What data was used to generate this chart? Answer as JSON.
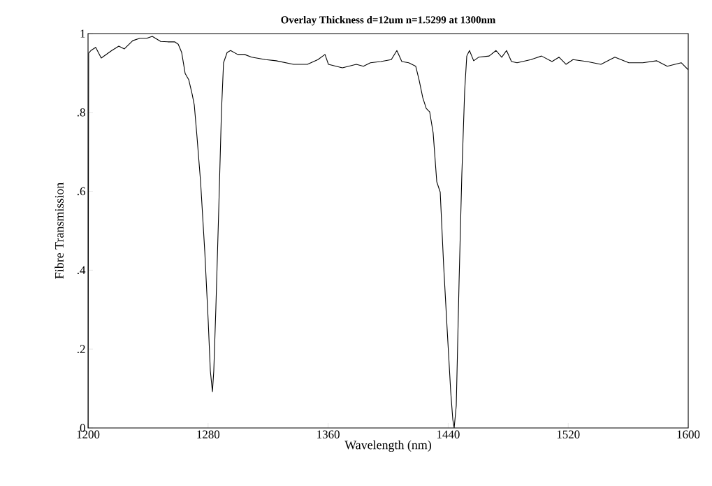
{
  "chart_data": {
    "type": "line",
    "title": "Overlay Thickness d=12um  n=1.5299 at 1300nm",
    "xlabel": "Wavelength (nm)",
    "ylabel": "Fibre Transmission",
    "xlim": [
      1200,
      1600
    ],
    "ylim": [
      0,
      1
    ],
    "xticks": [
      1200,
      1280,
      1360,
      1440,
      1520,
      1600
    ],
    "yticks": [
      {
        "value": 0,
        "label": "0"
      },
      {
        "value": 0.2,
        "label": ".2"
      },
      {
        "value": 0.4,
        "label": ".4"
      },
      {
        "value": 0.6,
        "label": ".6"
      },
      {
        "value": 0.8,
        "label": ".8"
      },
      {
        "value": 1,
        "label": "1"
      }
    ],
    "grid": false,
    "marker": "none",
    "line_style": "solid",
    "series": [
      {
        "color": "#000000",
        "x": [
          1200.0,
          1200.4,
          1201.9,
          1205.1,
          1208.8,
          1215.8,
          1220.5,
          1224.2,
          1229.8,
          1234.5,
          1239.1,
          1242.8,
          1248.4,
          1253.1,
          1257.7,
          1260.1,
          1262.4,
          1264.7,
          1267.1,
          1269.4,
          1270.8,
          1272.6,
          1275.0,
          1277.8,
          1280.1,
          1281.5,
          1282.9,
          1283.8,
          1285.2,
          1287.1,
          1288.9,
          1290.3,
          1292.7,
          1295.0,
          1299.7,
          1304.3,
          1309.0,
          1318.3,
          1325.3,
          1336.9,
          1346.2,
          1353.2,
          1357.9,
          1360.2,
          1369.5,
          1378.8,
          1383.5,
          1388.2,
          1395.1,
          1402.1,
          1405.8,
          1409.1,
          1413.7,
          1418.4,
          1420.7,
          1423.1,
          1425.4,
          1427.7,
          1430.0,
          1432.4,
          1434.7,
          1437.0,
          1439.3,
          1441.7,
          1443.1,
          1444.0,
          1445.4,
          1447.3,
          1449.1,
          1451.0,
          1452.4,
          1454.2,
          1457.0,
          1460.3,
          1467.3,
          1471.9,
          1475.7,
          1478.9,
          1482.2,
          1485.9,
          1495.2,
          1502.2,
          1509.2,
          1513.9,
          1518.5,
          1523.2,
          1532.5,
          1541.8,
          1551.1,
          1560.4,
          1569.7,
          1579.0,
          1586.0,
          1595.3,
          1600.0
        ],
        "values": [
          0.0,
          0.95,
          0.957,
          0.965,
          0.938,
          0.957,
          0.968,
          0.961,
          0.982,
          0.988,
          0.988,
          0.993,
          0.98,
          0.979,
          0.979,
          0.973,
          0.952,
          0.899,
          0.883,
          0.846,
          0.819,
          0.739,
          0.624,
          0.447,
          0.27,
          0.145,
          0.092,
          0.145,
          0.305,
          0.553,
          0.801,
          0.926,
          0.952,
          0.957,
          0.947,
          0.947,
          0.94,
          0.934,
          0.931,
          0.922,
          0.922,
          0.934,
          0.947,
          0.922,
          0.913,
          0.922,
          0.917,
          0.926,
          0.929,
          0.934,
          0.957,
          0.929,
          0.926,
          0.917,
          0.881,
          0.837,
          0.81,
          0.801,
          0.748,
          0.624,
          0.598,
          0.411,
          0.252,
          0.092,
          0.021,
          0.0,
          0.057,
          0.376,
          0.642,
          0.855,
          0.943,
          0.957,
          0.931,
          0.94,
          0.943,
          0.957,
          0.94,
          0.957,
          0.929,
          0.926,
          0.934,
          0.943,
          0.929,
          0.94,
          0.922,
          0.934,
          0.929,
          0.922,
          0.94,
          0.926,
          0.926,
          0.931,
          0.917,
          0.926,
          0.908
        ]
      }
    ]
  }
}
